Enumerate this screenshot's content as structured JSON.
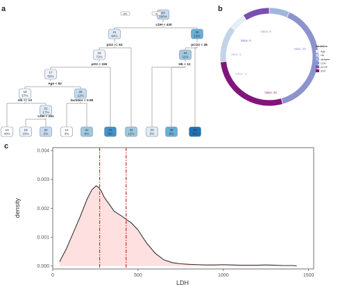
{
  "panels": {
    "a": "a",
    "b": "b",
    "c": "c"
  },
  "chart_data": [
    {
      "type": "decision-tree",
      "nodes": [
        {
          "id": "n1",
          "value": "23",
          "pct": "100%",
          "fill": "#c6dbef"
        },
        {
          "id": "n2",
          "value": "21",
          "pct": "84%",
          "fill": "#deebf7"
        },
        {
          "id": "n3",
          "value": "39",
          "pct": "16%",
          "fill": "#6baed6"
        },
        {
          "id": "n4",
          "value": "18",
          "pct": "72%",
          "fill": "#eff3ff"
        },
        {
          "id": "n5",
          "value": "34",
          "pct": "11%",
          "fill": "#9ecae1"
        },
        {
          "id": "n6",
          "value": "17",
          "pct": "69%",
          "fill": "#eff3ff"
        },
        {
          "id": "n7",
          "value": "16",
          "pct": "57%",
          "fill": "#f7fbff"
        },
        {
          "id": "n8",
          "value": "26",
          "pct": "12%",
          "fill": "#c6dbef"
        },
        {
          "id": "n9",
          "value": "21",
          "pct": "17%",
          "fill": "#deebf7"
        },
        {
          "id": "l1",
          "value": "13",
          "pct": "40%",
          "fill": "#ffffff"
        },
        {
          "id": "l2",
          "value": "19",
          "pct": "15%",
          "fill": "#eff3ff"
        },
        {
          "id": "l3",
          "value": "32",
          "pct": "2%",
          "fill": "#c6dbef"
        },
        {
          "id": "l4",
          "value": "12",
          "pct": "3%",
          "fill": "#ffffff"
        },
        {
          "id": "l5",
          "value": "31",
          "pct": "9%",
          "fill": "#9ecae1"
        },
        {
          "id": "l6",
          "value": "41",
          "pct": "5%",
          "fill": "#4292c6"
        },
        {
          "id": "l7",
          "value": "34",
          "pct": "12%",
          "fill": "#9ecae1"
        },
        {
          "id": "l8",
          "value": "23",
          "pct": "3%",
          "fill": "#deebf7"
        },
        {
          "id": "l9",
          "value": "38",
          "pct": "8%",
          "fill": "#6baed6"
        },
        {
          "id": "l10",
          "value": "56",
          "pct": "5%",
          "fill": "#2171b5"
        }
      ],
      "splits": [
        {
          "id": "s1",
          "text": "LDH < 430"
        },
        {
          "id": "s2",
          "text": "pO2 >= 53"
        },
        {
          "id": "s3",
          "text": "pCO2 < 38"
        },
        {
          "id": "s4",
          "text": "pO2 < 155"
        },
        {
          "id": "s5",
          "text": "Hb < 12"
        },
        {
          "id": "s6",
          "text": "Age < 92"
        },
        {
          "id": "s7",
          "text": "lactates < 0.95"
        },
        {
          "id": "s8",
          "text": "Hb >= 13"
        },
        {
          "id": "s9",
          "text": "LDH < 261"
        }
      ],
      "yes_label": "yes",
      "no_label": "no"
    },
    {
      "type": "pie",
      "segments": [
        {
          "name": "Age",
          "value": 5,
          "label": "Value: 5",
          "color": "#e4eef6",
          "text_color": "#9fb2cc"
        },
        {
          "name": "Hb",
          "value": 11,
          "label": "Value: 11",
          "color": "#c3d3e8",
          "text_color": "#a9bad3"
        },
        {
          "name": "lactates",
          "value": 6,
          "label": "Value: 6",
          "color": "#9fb6dd",
          "text_color": "#7f95cf"
        },
        {
          "name": "LDH",
          "value": 35,
          "label": "Value: 35",
          "color": "#8d93cd",
          "text_color": "#8a8fd0"
        },
        {
          "name": "pCO2",
          "value": 8,
          "label": "Value: 8",
          "color": "#7a4fb0",
          "text_color": "#8a5bc0"
        },
        {
          "name": "pO2",
          "value": 25,
          "label": "Value: 25",
          "color": "#82157c",
          "text_color": "#8f2a86"
        }
      ],
      "legend_title": "Variables"
    },
    {
      "type": "area",
      "xlabel": "LDH",
      "ylabel": "density",
      "xlim": [
        0,
        1530
      ],
      "ylim": [
        -0.0001,
        0.0041
      ],
      "xticks": [
        0,
        500,
        1000,
        1500
      ],
      "yticks": [
        0.0,
        0.001,
        0.002,
        0.003,
        0.004
      ],
      "ytick_labels": [
        "0.000",
        "0.001",
        "0.002",
        "0.003",
        "0.004"
      ],
      "x": [
        40,
        80,
        120,
        160,
        200,
        230,
        255,
        270,
        285,
        300,
        330,
        360,
        400,
        430,
        460,
        500,
        550,
        600,
        650,
        700,
        750,
        800,
        850,
        900,
        950,
        1000,
        1050,
        1100,
        1150,
        1200,
        1250,
        1300,
        1350,
        1400,
        1430
      ],
      "y": [
        0.00015,
        0.0006,
        0.00115,
        0.0017,
        0.0023,
        0.00265,
        0.00278,
        0.00272,
        0.0026,
        0.0024,
        0.00215,
        0.0019,
        0.00175,
        0.00162,
        0.0015,
        0.00125,
        0.0008,
        0.00045,
        0.00022,
        0.00012,
        8e-05,
        6e-05,
        5e-05,
        4e-05,
        4e-05,
        5e-05,
        4e-05,
        3e-05,
        3e-05,
        3e-05,
        4e-05,
        3e-05,
        2e-05,
        2e-05,
        1e-05
      ],
      "vlines": [
        275,
        430
      ],
      "fill_color": "#ffe0e0",
      "line_color": "#333333",
      "vline_color": "#d62728"
    }
  ]
}
